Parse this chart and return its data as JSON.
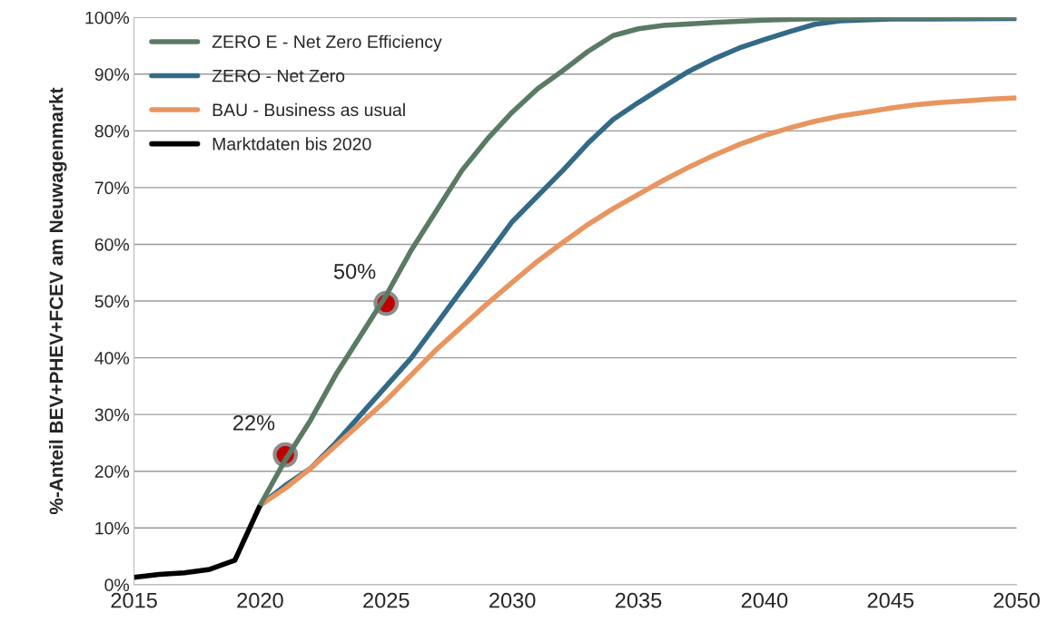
{
  "chart_data": {
    "type": "line",
    "ylabel": "%-Anteil BEV+PHEV+FCEV am Neuwagenmarkt",
    "xlim": [
      2015,
      2050
    ],
    "xticks": [
      2015,
      2020,
      2025,
      2030,
      2035,
      2040,
      2045,
      2050
    ],
    "ylim": [
      0,
      100
    ],
    "yticks": [
      {
        "value": 0,
        "label": "0%"
      },
      {
        "value": 10,
        "label": "10%"
      },
      {
        "value": 20,
        "label": "20%"
      },
      {
        "value": 30,
        "label": "30%"
      },
      {
        "value": 40,
        "label": "40%"
      },
      {
        "value": 50,
        "label": "50%"
      },
      {
        "value": 60,
        "label": "60%"
      },
      {
        "value": 70,
        "label": "70%"
      },
      {
        "value": 80,
        "label": "80%"
      },
      {
        "value": 90,
        "label": "90%"
      },
      {
        "value": 100,
        "label": "100%"
      }
    ],
    "grid": "y",
    "legend": "top left",
    "marker": "none",
    "line_style": "solid",
    "series": [
      {
        "name": "ZERO E - Net Zero Efficiency",
        "color": "#5a7a64",
        "x": [
          2020,
          2021,
          2022,
          2023,
          2024,
          2025,
          2026,
          2027,
          2028,
          2029,
          2030,
          2031,
          2032,
          2033,
          2034,
          2035,
          2036,
          2038,
          2040,
          2043,
          2050
        ],
        "values": [
          14,
          22,
          29,
          37,
          44,
          51,
          59,
          66,
          73,
          78.5,
          83.3,
          87.4,
          90.6,
          94,
          96.8,
          98,
          98.6,
          99.1,
          99.5,
          99.9,
          100
        ]
      },
      {
        "name": "ZERO - Net Zero",
        "color": "#336a87",
        "x": [
          2020,
          2021,
          2022,
          2023,
          2024,
          2025,
          2026,
          2027,
          2028,
          2029,
          2030,
          2031,
          2032,
          2033,
          2034,
          2035,
          2036,
          2037,
          2038,
          2039,
          2040,
          2041,
          2042,
          2043,
          2045,
          2050
        ],
        "values": [
          14,
          17.5,
          20.5,
          25,
          30,
          35,
          40,
          46,
          52,
          58,
          64,
          68.5,
          73,
          77.8,
          82,
          85,
          87.8,
          90.5,
          92.7,
          94.6,
          96.1,
          97.5,
          98.8,
          99.4,
          99.7,
          99.8
        ]
      },
      {
        "name": "BAU - Business as usual",
        "color": "#e8955f",
        "x": [
          2020,
          2021,
          2022,
          2023,
          2024,
          2025,
          2026,
          2027,
          2028,
          2029,
          2030,
          2031,
          2032,
          2033,
          2034,
          2035,
          2036,
          2037,
          2038,
          2039,
          2040,
          2041,
          2042,
          2043,
          2044,
          2045,
          2046,
          2047,
          2048,
          2049,
          2050
        ],
        "values": [
          14,
          17,
          20.5,
          24.5,
          28.5,
          32.5,
          37,
          41.5,
          45.5,
          49.5,
          53.3,
          57,
          60.3,
          63.5,
          66.3,
          68.8,
          71.3,
          73.6,
          75.7,
          77.6,
          79.2,
          80.5,
          81.7,
          82.6,
          83.3,
          84,
          84.6,
          85,
          85.3,
          85.6,
          85.8
        ]
      },
      {
        "name": "Marktdaten bis 2020",
        "color": "#000000",
        "x": [
          2015,
          2016,
          2017,
          2018,
          2019,
          2020
        ],
        "values": [
          1.3,
          1.8,
          2.1,
          2.7,
          4.3,
          14
        ]
      }
    ],
    "annotations": [
      {
        "text": "22%",
        "x": 2021,
        "y": 22.9
      },
      {
        "text": "50%",
        "x": 2025,
        "y": 49.6
      }
    ]
  }
}
